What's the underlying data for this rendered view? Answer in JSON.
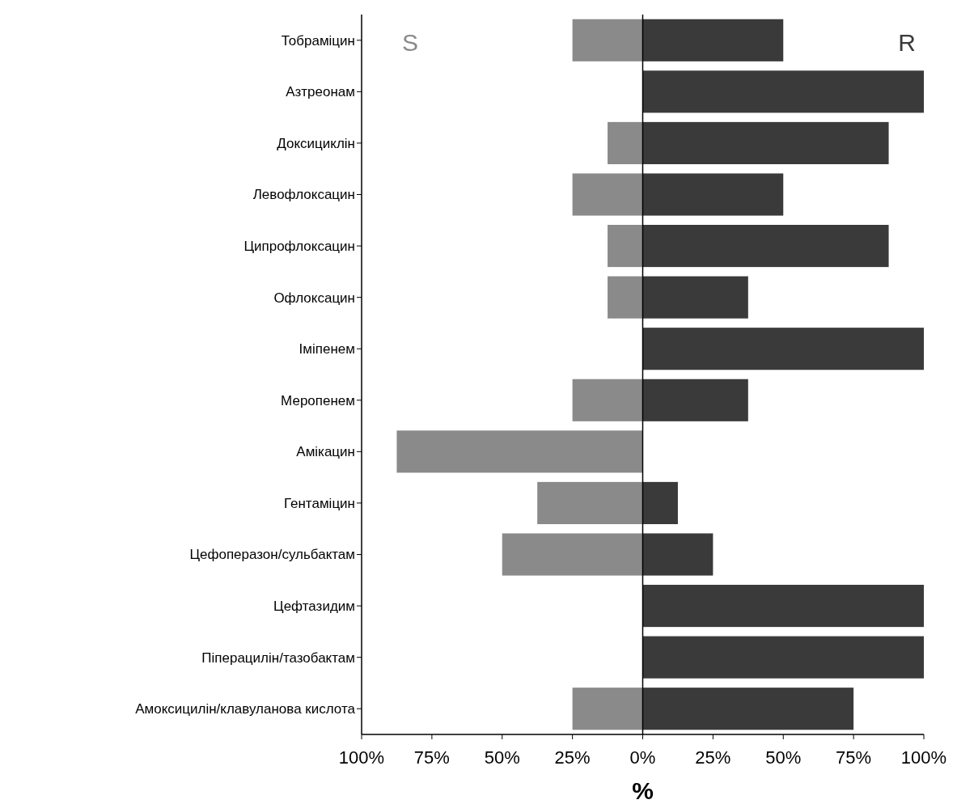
{
  "chart_data": {
    "type": "bar",
    "orientation": "horizontal",
    "xlabel": "%",
    "categories": [
      "Тобраміцин",
      "Азтреонам",
      "Доксициклін",
      "Левофлоксацин",
      "Ципрофлоксацин",
      "Офлоксацин",
      "Іміпенем",
      "Меропенем",
      "Амікацин",
      "Гентаміцин",
      "Цефоперазон/сульбактам",
      "Цефтазидим",
      "Піперацилін/тазобактам",
      "Амоксицилін/клавуланова кислота"
    ],
    "series": [
      {
        "name": "S",
        "color": "#8a8a8a",
        "values": [
          -25,
          0,
          -12.5,
          -25,
          -12.5,
          -12.5,
          0,
          -25,
          -87.5,
          -37.5,
          -50,
          0,
          0,
          -25
        ]
      },
      {
        "name": "R",
        "color": "#3a3a3a",
        "values": [
          50,
          100,
          87.5,
          50,
          87.5,
          37.5,
          100,
          37.5,
          0,
          12.5,
          25,
          100,
          100,
          75
        ]
      }
    ],
    "xlim": [
      -100,
      100
    ],
    "xticks": [
      {
        "value": -100,
        "label": "100%"
      },
      {
        "value": -75,
        "label": "75%"
      },
      {
        "value": -50,
        "label": "50%"
      },
      {
        "value": -25,
        "label": "25%"
      },
      {
        "value": 0,
        "label": "0%"
      },
      {
        "value": 25,
        "label": "25%"
      },
      {
        "value": 50,
        "label": "50%"
      },
      {
        "value": 75,
        "label": "75%"
      },
      {
        "value": 100,
        "label": "100%"
      }
    ],
    "stacked": true,
    "ref_lines": [
      {
        "axis": "x",
        "value": 0,
        "color": "#000000"
      }
    ],
    "grid": false
  }
}
